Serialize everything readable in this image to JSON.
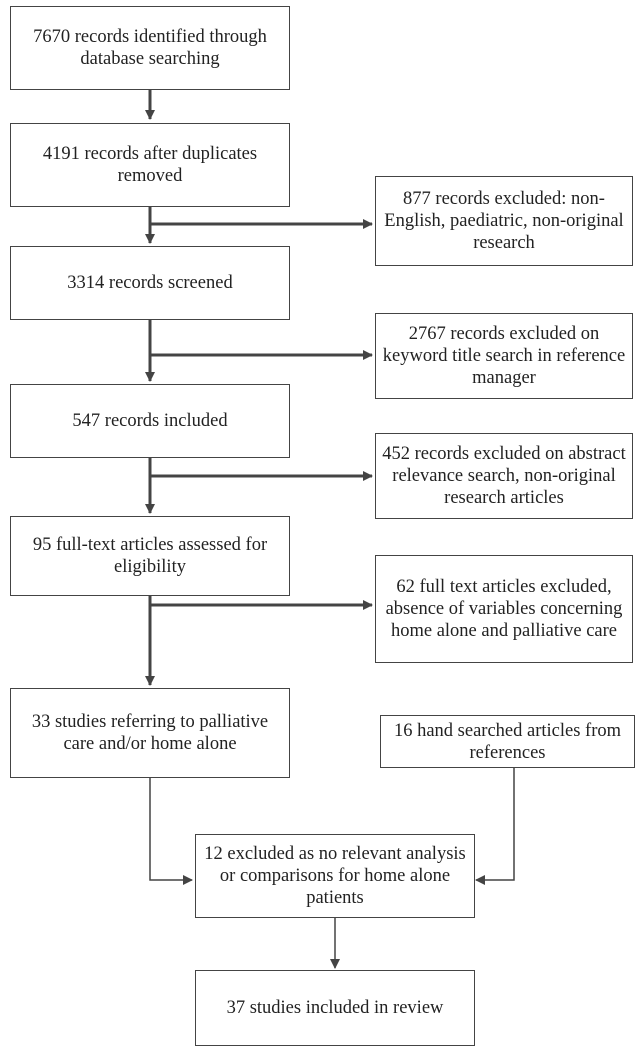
{
  "flowchart": {
    "main_steps": [
      {
        "id": "identified",
        "text": "7670  records identified through database searching"
      },
      {
        "id": "deduplicated",
        "text": "4191 records after duplicates removed"
      },
      {
        "id": "screened",
        "text": "3314 records screened"
      },
      {
        "id": "included",
        "text": "547 records included"
      },
      {
        "id": "fulltext",
        "text": "95 full-text articles assessed for eligibility"
      },
      {
        "id": "studies",
        "text": "33 studies referring to palliative care and/or home alone"
      },
      {
        "id": "excluded-analysis",
        "text": "12 excluded as no relevant analysis or comparisons for home alone patients"
      },
      {
        "id": "final",
        "text": "37 studies included in review"
      }
    ],
    "exclusions": [
      {
        "id": "excl-877",
        "text": "877  records excluded: non-English, paediatric, non-original research"
      },
      {
        "id": "excl-2767",
        "text": "2767 records excluded on keyword title search in reference manager"
      },
      {
        "id": "excl-452",
        "text": "452 records excluded on abstract relevance search, non-original research articles"
      },
      {
        "id": "excl-62",
        "text": "62 full text articles excluded, absence of variables concerning home alone and palliative care"
      }
    ],
    "hand_search": {
      "id": "hand-searched",
      "text": "16 hand searched articles from references"
    }
  }
}
